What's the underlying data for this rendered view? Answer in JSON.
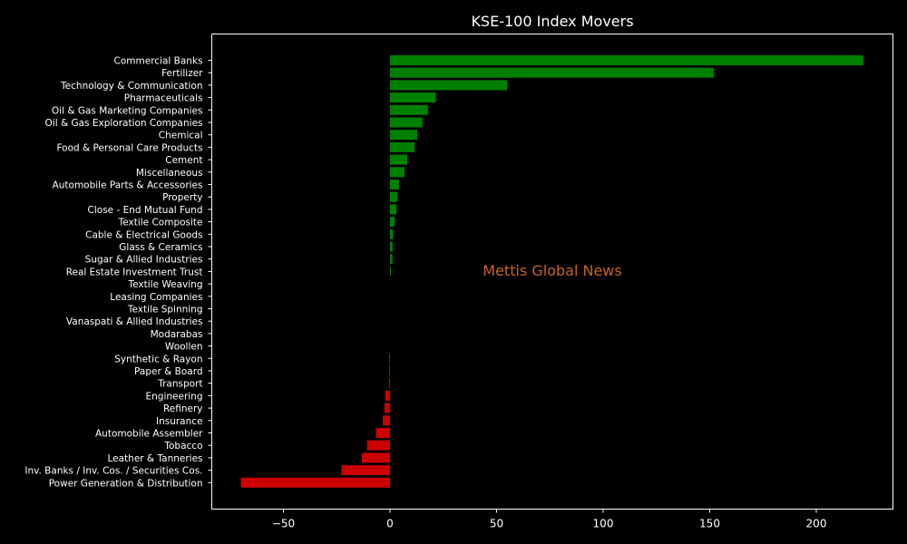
{
  "chart_data": {
    "type": "bar",
    "orientation": "horizontal",
    "title": "KSE-100 Index Movers",
    "xlabel": "",
    "ylabel": "",
    "xlim": [
      -70,
      230
    ],
    "xticks": [
      -50,
      0,
      50,
      100,
      150,
      200
    ],
    "xtick_labels": [
      "−50",
      "0",
      "50",
      "100",
      "150",
      "200"
    ],
    "grid": false,
    "positive_color": "#008000",
    "negative_color": "#cc0000",
    "categories": [
      "Commercial Banks",
      "Fertilizer",
      "Technology & Communication",
      "Pharmaceuticals",
      "Oil & Gas Marketing Companies",
      "Oil & Gas Exploration Companies",
      "Chemical",
      "Food & Personal Care Products",
      "Cement",
      "Miscellaneous",
      "Automobile Parts & Accessories",
      "Property",
      "Close - End Mutual Fund",
      "Textile Composite",
      "Cable & Electrical Goods",
      "Glass & Ceramics",
      "Sugar & Allied Industries",
      "Real Estate Investment Trust",
      "Textile Weaving",
      "Leasing Companies",
      "Textile Spinning",
      "Vanaspati & Allied Industries",
      "Modarabas",
      "Woollen",
      "Synthetic & Rayon",
      "Paper & Board",
      "Transport",
      "Engineering",
      "Refinery",
      "Insurance",
      "Automobile Assembler",
      "Tobacco",
      "Leather & Tanneries",
      "Inv. Banks / Inv. Cos. / Securities Cos.",
      "Power Generation & Distribution"
    ],
    "values": [
      222,
      152,
      55,
      21.5,
      17.8,
      15.2,
      12.8,
      11.5,
      8.2,
      6.8,
      4.2,
      3.4,
      3.0,
      2.2,
      1.4,
      1.2,
      1.1,
      0.4,
      0,
      0,
      0,
      0,
      0,
      0,
      -0.4,
      -0.4,
      -0.5,
      -2.3,
      -2.6,
      -3.4,
      -6.6,
      -10.8,
      -13.2,
      -22.8,
      -70
    ]
  },
  "watermark": "Mettis Global News"
}
